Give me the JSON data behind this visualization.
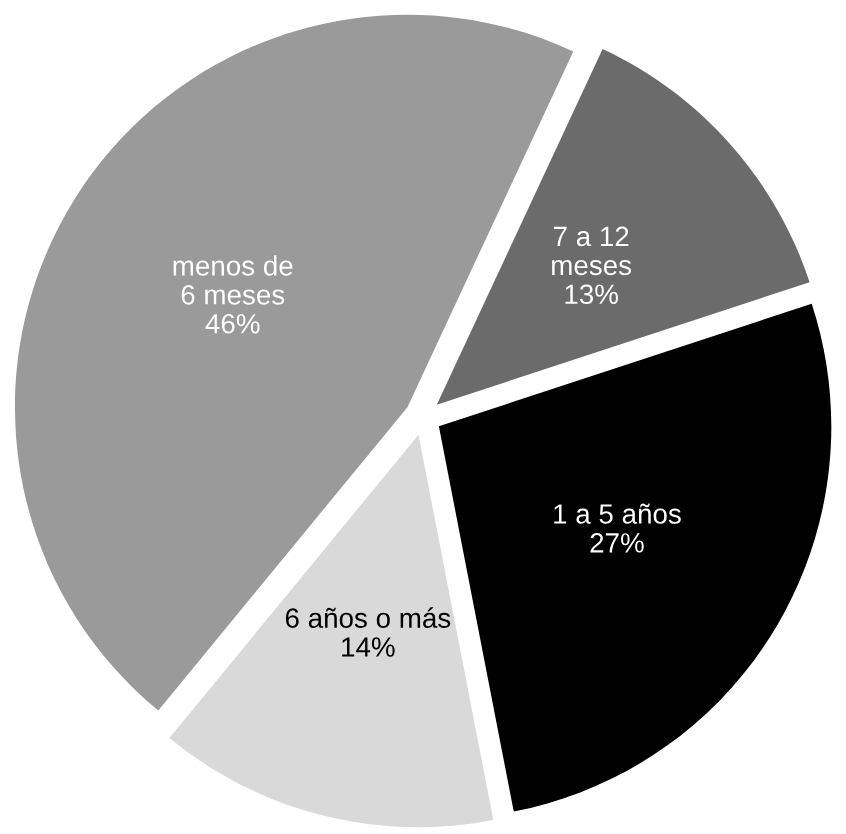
{
  "chart_data": {
    "type": "pie",
    "categories": [
      "7 a 12\nmeses",
      "1 a 5 años",
      "6 años o más",
      "menos de\n6 meses"
    ],
    "values": [
      13,
      27,
      14,
      46
    ],
    "value_labels": [
      "13%",
      "27%",
      "14%",
      "46%"
    ],
    "colors": [
      "#6b6b6b",
      "#000000",
      "#d9d9d9",
      "#9a9a9a"
    ],
    "legend": false
  }
}
